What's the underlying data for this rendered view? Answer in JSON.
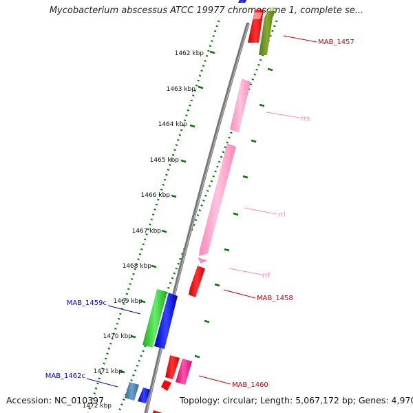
{
  "title": "Mycobacterium abscessus ATCC 19977 chromosome 1, complete se...",
  "footer": {
    "accession": "Accession: NC_010397",
    "summary": "Topology: circular; Length: 5,067,172 bp; Genes: 4,970"
  },
  "ticks": [
    {
      "label": "1462 kbp"
    },
    {
      "label": "1463 kbp"
    },
    {
      "label": "1464 kbp"
    },
    {
      "label": "1465 kbp"
    },
    {
      "label": "1466 kbp"
    },
    {
      "label": "1467 kbp"
    },
    {
      "label": "1468 kbp"
    },
    {
      "label": "1469 kbp"
    },
    {
      "label": "1470 kbp"
    },
    {
      "label": "1471 kbp"
    },
    {
      "label": "1472 kbp"
    }
  ],
  "genes": [
    {
      "name": "MAB_1457",
      "strand": "forward",
      "color": "#ff0000"
    },
    {
      "name": "rrs",
      "strand": "forward",
      "color": "#ff99cc"
    },
    {
      "name": "rrl",
      "strand": "forward",
      "color": "#ff99cc"
    },
    {
      "name": "rrf",
      "strand": "forward",
      "color": "#ff99cc"
    },
    {
      "name": "MAB_1458",
      "strand": "forward",
      "color": "#ff0000"
    },
    {
      "name": "MAB_1459c",
      "strand": "reverse",
      "color": "#0000cc"
    },
    {
      "name": "MAB_1460",
      "strand": "forward",
      "color": "#ff0000"
    },
    {
      "name": "MAB_1462c",
      "strand": "reverse",
      "color": "#0000cc"
    }
  ],
  "colors": {
    "backbone": "#888888",
    "tick": "#007700",
    "cds_red": "#ff0000",
    "rrna_pink": "#ff99cc",
    "blue": "#0000ee",
    "green": "#33cc33",
    "olive": "#668822",
    "magenta": "#ff1493",
    "steel": "#4682b4"
  }
}
